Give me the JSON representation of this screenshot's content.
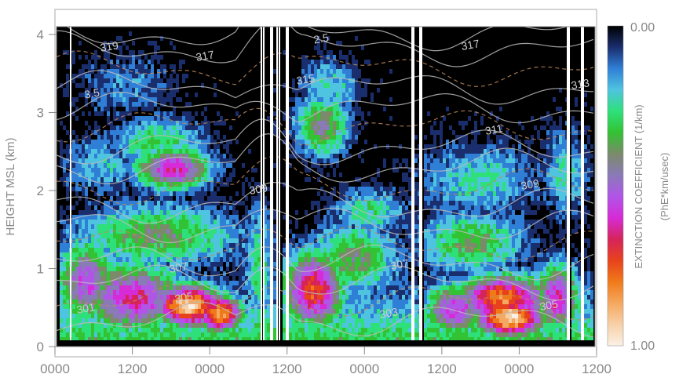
{
  "chart_data": {
    "type": "heatmap",
    "title": "",
    "xlabel": "",
    "ylabel": "HEIGHT MSL (km)",
    "x_tick_labels": [
      "0000",
      "1200",
      "0000",
      "1200",
      "0000",
      "1200",
      "0000",
      "1200"
    ],
    "y_ticks": [
      0,
      1,
      2,
      3,
      4
    ],
    "ylim": [
      0,
      4.1
    ],
    "colorbar": {
      "label": "EXTINCTION COEFFICIENT (1/km)",
      "unit_label": "(PhE*km/usec)",
      "min_label": "0.00",
      "max_label": "1.00",
      "range": [
        0,
        1
      ],
      "colors": [
        "#000000",
        "#1a2e6e",
        "#2f7fd6",
        "#4fc4e0",
        "#2ee07a",
        "#33c233",
        "#7a8a6a",
        "#8a7ab8",
        "#b055e8",
        "#d62bd6",
        "#d6245a",
        "#e8421c",
        "#f07a1a",
        "#f5a860",
        "#f7d0a8",
        "#fbf0e6"
      ]
    },
    "contour_labels": [
      "319",
      "317",
      "315",
      "311",
      "309",
      "307",
      "305",
      "303",
      "301",
      "313",
      "2.5",
      "3.5"
    ],
    "grid": false,
    "legend": "colorbar-right"
  }
}
